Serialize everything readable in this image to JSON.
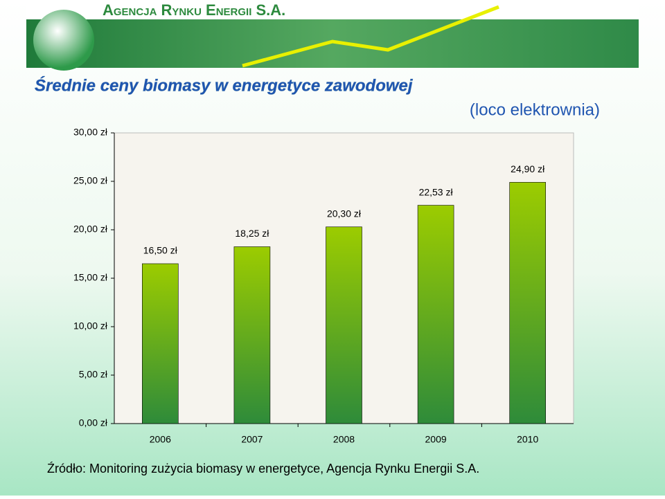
{
  "banner": "Agencja Rynku Energii S.A.",
  "chart_data": {
    "type": "bar",
    "title": "Średnie ceny biomasy w energetyce zawodowej",
    "subtitle": "(loco elektrownia)",
    "source": "Źródło: Monitoring zużycia biomasy w energetyce, Agencja Rynku Energii S.A.",
    "categories": [
      "2006",
      "2007",
      "2008",
      "2009",
      "2010"
    ],
    "values": [
      16.5,
      18.25,
      20.3,
      22.53,
      24.9
    ],
    "value_labels": [
      "16,50 zł",
      "18,25 zł",
      "20,30 zł",
      "22,53 zł",
      "24,90 zł"
    ],
    "color": "#66b814",
    "ylim": [
      0,
      30
    ],
    "yticks": [
      {
        "value": 0,
        "label": "0,00 zł"
      },
      {
        "value": 5,
        "label": "5,00 zł"
      },
      {
        "value": 10,
        "label": "10,00 zł"
      },
      {
        "value": 15,
        "label": "15,00 zł"
      },
      {
        "value": 20,
        "label": "20,00 zł"
      },
      {
        "value": 25,
        "label": "25,00 zł"
      },
      {
        "value": 30,
        "label": "30,00 zł"
      }
    ],
    "grid": false
  }
}
